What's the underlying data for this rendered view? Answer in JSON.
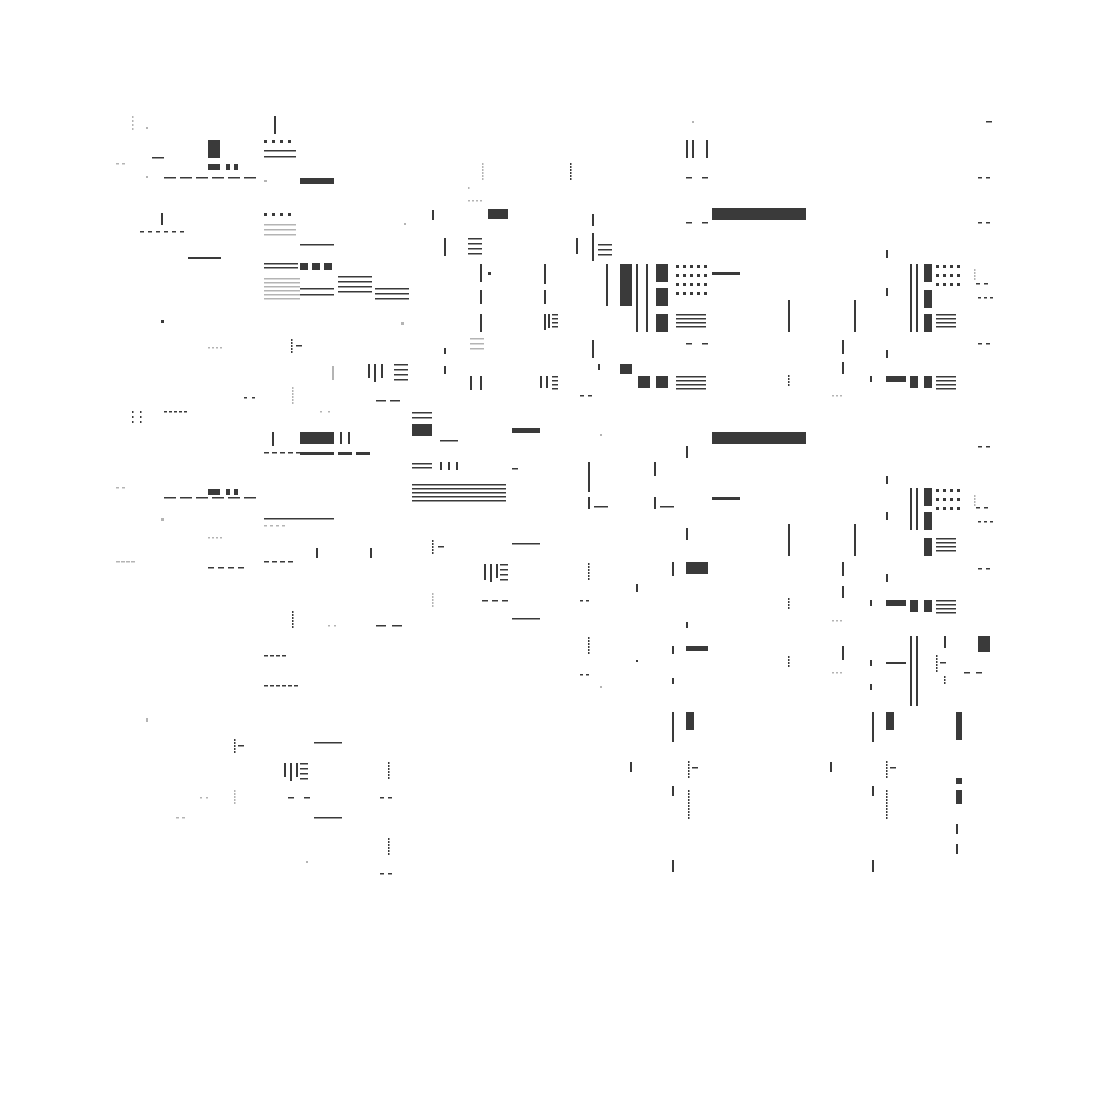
{
  "colors": {
    "background": "#ffffff",
    "ink": "#3a3a3a",
    "faint": "#b4b4b4"
  }
}
